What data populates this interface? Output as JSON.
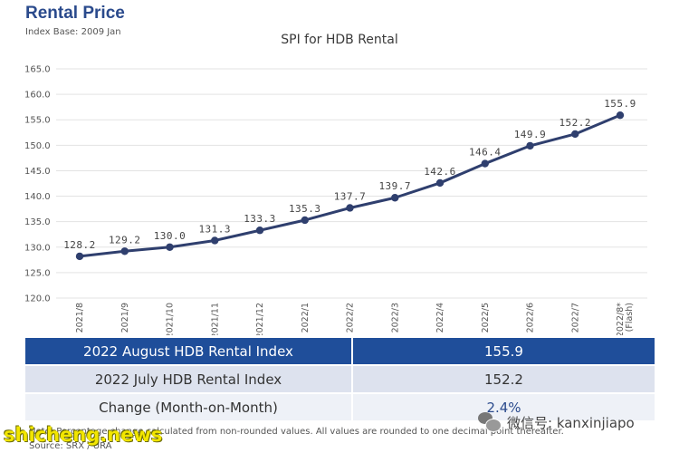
{
  "header": {
    "title": "Rental Price",
    "subtitle": "Index Base: 2009 Jan"
  },
  "chart_data": {
    "type": "line",
    "title": "SPI for HDB Rental",
    "xlabel": "",
    "ylabel": "",
    "categories": [
      "2021/8",
      "2021/9",
      "2021/10",
      "2021/11",
      "2021/12",
      "2022/1",
      "2022/2",
      "2022/3",
      "2022/4",
      "2022/5",
      "2022/6",
      "2022/7",
      "2022/8*|(Flash)"
    ],
    "values": [
      128.2,
      129.2,
      130.0,
      131.3,
      133.3,
      135.3,
      137.7,
      139.7,
      142.6,
      146.4,
      149.9,
      152.2,
      155.9
    ],
    "value_labels": [
      "128.2",
      "129.2",
      "130.0",
      "131.3",
      "133.3",
      "135.3",
      "137.7",
      "139.7",
      "142.6",
      "146.4",
      "149.9",
      "152.2",
      "155.9"
    ],
    "ylim": [
      120,
      165
    ],
    "yticks": [
      "120.0",
      "125.0",
      "130.0",
      "135.0",
      "140.0",
      "145.0",
      "150.0",
      "155.0",
      "160.0",
      "165.0"
    ],
    "grid": true,
    "line_color": "#2f3f6e",
    "gridline_color": "#e3e3e3"
  },
  "table": {
    "rows": [
      {
        "label": "2022 August HDB Rental Index",
        "value": "155.9"
      },
      {
        "label": "2022 July HDB Rental Index",
        "value": "152.2"
      },
      {
        "label": "Change (Month-on-Month)",
        "value": "2.4%"
      }
    ]
  },
  "footnote": "Note: Percentage change calculated from non-rounded values.  All values are rounded to one decimal point thereafter.",
  "source": "Source: SRX / URA",
  "watermarks": {
    "left": "shicheng.news",
    "right": "微信号: kanxinjiapo",
    "right_icon": "wechat-icon"
  },
  "colors": {
    "title": "#2a4a8c",
    "table_header_bg": "#1f4e9a",
    "table_row_bg": "#dde2ee"
  }
}
